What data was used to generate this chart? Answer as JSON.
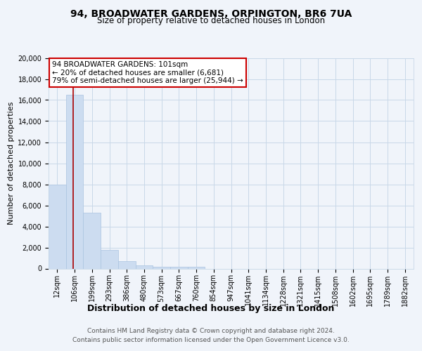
{
  "title1": "94, BROADWATER GARDENS, ORPINGTON, BR6 7UA",
  "title2": "Size of property relative to detached houses in London",
  "xlabel": "Distribution of detached houses by size in London",
  "ylabel": "Number of detached properties",
  "categories": [
    "12sqm",
    "106sqm",
    "199sqm",
    "293sqm",
    "386sqm",
    "480sqm",
    "573sqm",
    "667sqm",
    "760sqm",
    "854sqm",
    "947sqm",
    "1041sqm",
    "1134sqm",
    "1228sqm",
    "1321sqm",
    "1415sqm",
    "1508sqm",
    "1602sqm",
    "1695sqm",
    "1789sqm",
    "1882sqm"
  ],
  "values": [
    8000,
    16500,
    5300,
    1750,
    700,
    300,
    200,
    150,
    150,
    0,
    0,
    0,
    0,
    0,
    0,
    0,
    0,
    0,
    0,
    0,
    0
  ],
  "bar_color": "#ccdcf0",
  "bar_edge_color": "#aac4e0",
  "grid_color": "#c8d8e8",
  "annotation_text1": "94 BROADWATER GARDENS: 101sqm",
  "annotation_text2": "← 20% of detached houses are smaller (6,681)",
  "annotation_text3": "79% of semi-detached houses are larger (25,944) →",
  "vline_x": 0.93,
  "vline_color": "#aa0000",
  "annotation_box_color": "#cc0000",
  "ylim": [
    0,
    20000
  ],
  "yticks": [
    0,
    2000,
    4000,
    6000,
    8000,
    10000,
    12000,
    14000,
    16000,
    18000,
    20000
  ],
  "footer1": "Contains HM Land Registry data © Crown copyright and database right 2024.",
  "footer2": "Contains public sector information licensed under the Open Government Licence v3.0.",
  "bg_color": "#f0f4fa",
  "plot_bg_color": "#f0f4fa",
  "title1_fontsize": 10,
  "title2_fontsize": 8.5,
  "xlabel_fontsize": 9,
  "ylabel_fontsize": 8,
  "tick_fontsize": 7,
  "annot_fontsize": 7.5,
  "footer_fontsize": 6.5
}
